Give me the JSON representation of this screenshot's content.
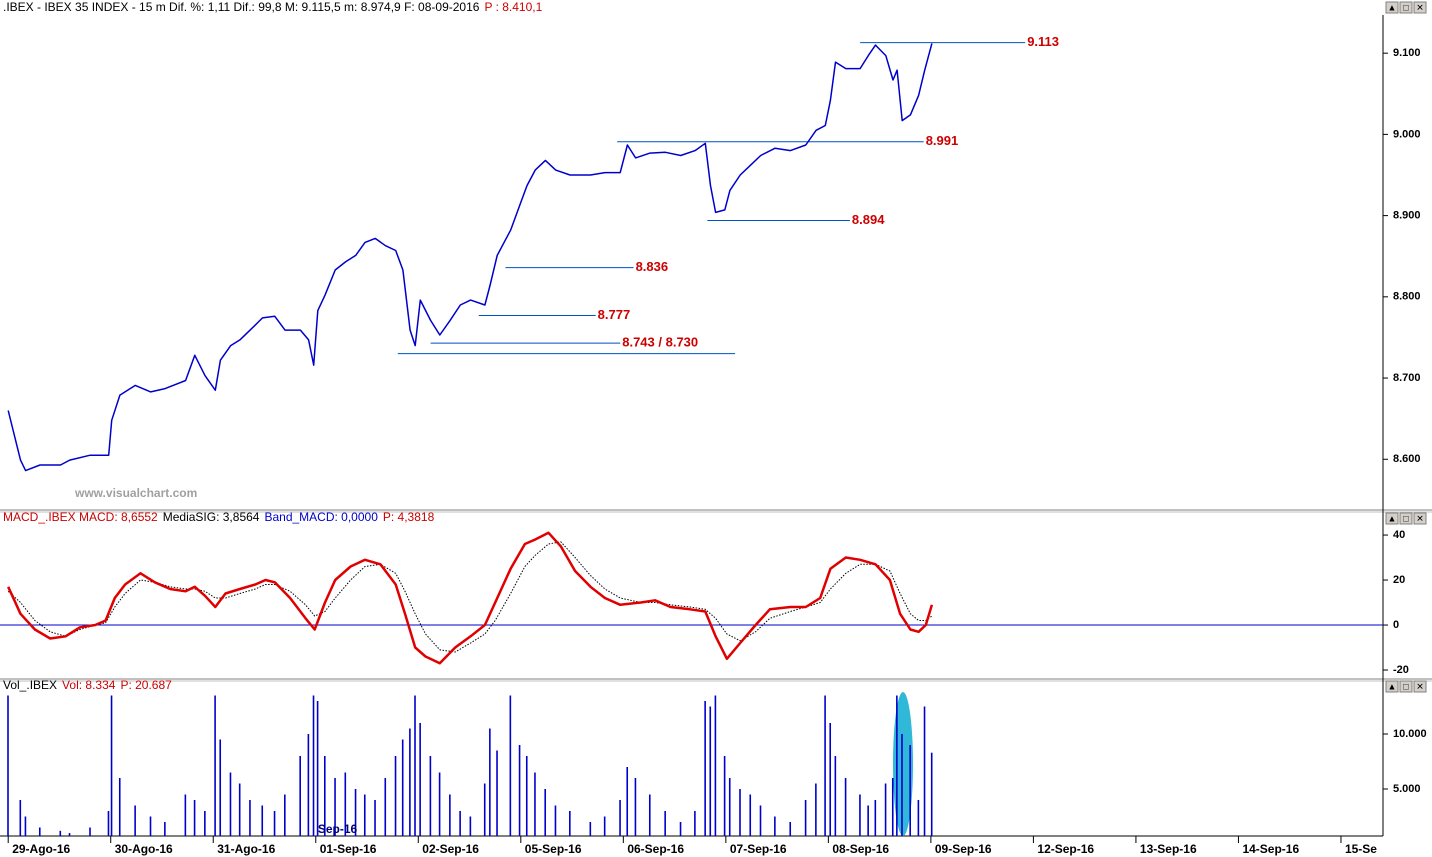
{
  "chart_data": [
    {
      "type": "line",
      "title_parts": [
        ".IBEX - IBEX 35 INDEX -  15 m  Dif. %: 1,11  Dif.: 99,8  M: 9.115,5  m: 8.974,9  F: 08-09-2016",
        "P : 8.410,1"
      ],
      "title_colors": [
        "#000000",
        "#cc0000"
      ],
      "watermark": "www.visualchart.com",
      "xlim": [
        -0.08,
        13.41
      ],
      "xticks": [
        {
          "value": 0,
          "label": "29-Ago-16"
        },
        {
          "value": 1,
          "label": "30-Ago-16"
        },
        {
          "value": 2,
          "label": "31-Ago-16"
        },
        {
          "value": 3,
          "label": "01-Sep-16"
        },
        {
          "value": 4,
          "label": "02-Sep-16"
        },
        {
          "value": 5,
          "label": "05-Sep-16"
        },
        {
          "value": 6,
          "label": "06-Sep-16"
        },
        {
          "value": 7,
          "label": "07-Sep-16"
        },
        {
          "value": 8,
          "label": "08-Sep-16"
        },
        {
          "value": 9,
          "label": "09-Sep-16"
        },
        {
          "value": 10,
          "label": "12-Sep-16"
        },
        {
          "value": 11,
          "label": "13-Sep-16"
        },
        {
          "value": 12,
          "label": "14-Sep-16"
        },
        {
          "value": 13,
          "label": "15-Se"
        }
      ],
      "ylim": [
        8540,
        9147
      ],
      "yticks": [
        {
          "value": 9100,
          "label": "9.100"
        },
        {
          "value": 9000,
          "label": "9.000"
        },
        {
          "value": 8900,
          "label": "8.900"
        },
        {
          "value": 8800,
          "label": "8.800"
        },
        {
          "value": 8700,
          "label": "8.700"
        },
        {
          "value": 8600,
          "label": "8.600"
        }
      ],
      "x": [
        0,
        0.12,
        0.17,
        0.31,
        0.51,
        0.6,
        0.8,
        0.98,
        1.01,
        1.09,
        1.24,
        1.39,
        1.53,
        1.73,
        1.82,
        1.92,
        2.02,
        2.07,
        2.17,
        2.26,
        2.36,
        2.48,
        2.6,
        2.7,
        2.85,
        2.93,
        2.98,
        3.02,
        3.09,
        3.19,
        3.29,
        3.39,
        3.48,
        3.58,
        3.68,
        3.78,
        3.85,
        3.92,
        3.97,
        4.02,
        4.12,
        4.21,
        4.31,
        4.41,
        4.51,
        4.65,
        4.7,
        4.77,
        4.9,
        4.99,
        5.06,
        5.14,
        5.24,
        5.34,
        5.48,
        5.68,
        5.82,
        5.97,
        6.04,
        6.12,
        6.26,
        6.41,
        6.56,
        6.7,
        6.8,
        6.85,
        6.9,
        6.99,
        7.04,
        7.14,
        7.24,
        7.34,
        7.48,
        7.63,
        7.78,
        7.88,
        7.97,
        8.02,
        8.07,
        8.17,
        8.31,
        8.39,
        8.46,
        8.56,
        8.63,
        8.67,
        8.72,
        8.8,
        8.88,
        8.94,
        9.01
      ],
      "series": [
        {
          "color": "#0000cc",
          "width": 1.5,
          "values": [
            8660,
            8599,
            8586,
            8593,
            8593,
            8599,
            8605,
            8605,
            8648,
            8679,
            8691,
            8683,
            8687,
            8697,
            8728,
            8703,
            8685,
            8722,
            8740,
            8747,
            8759,
            8774,
            8776,
            8759,
            8759,
            8747,
            8716,
            8783,
            8802,
            8833,
            8843,
            8851,
            8867,
            8872,
            8863,
            8857,
            8833,
            8759,
            8740,
            8796,
            8771,
            8753,
            8771,
            8790,
            8796,
            8790,
            8814,
            8851,
            8882,
            8913,
            8937,
            8956,
            8968,
            8956,
            8950,
            8950,
            8953,
            8953,
            8987,
            8971,
            8977,
            8978,
            8974,
            8980,
            8989,
            8937,
            8904,
            8907,
            8931,
            8950,
            8962,
            8974,
            8983,
            8980,
            8987,
            9005,
            9011,
            9042,
            9089,
            9081,
            9081,
            9097,
            9110,
            9097,
            9067,
            9079,
            9017,
            9024,
            9048,
            9079,
            9112
          ]
        }
      ],
      "level_color": "#0050c8",
      "levels": [
        {
          "value": 9113,
          "label": "9.113",
          "x": [
            8.31,
            9.92
          ]
        },
        {
          "value": 8991,
          "label": "8.991",
          "x": [
            5.94,
            8.93
          ]
        },
        {
          "value": 8894,
          "label": "8.894",
          "x": [
            6.82,
            8.21
          ]
        },
        {
          "value": 8836,
          "label": "8.836",
          "x": [
            4.85,
            6.1
          ]
        },
        {
          "value": 8777,
          "label": "8.777",
          "x": [
            4.59,
            5.73
          ]
        },
        {
          "value": 8743,
          "label": "8.743 / 8.730",
          "x": [
            4.12,
            5.97
          ]
        },
        {
          "value": 8730,
          "x": [
            3.8,
            7.09
          ]
        }
      ]
    },
    {
      "type": "line",
      "title_parts": [
        "MACD_.IBEX MACD: 8,6552",
        "MediaSIG: 3,8564",
        "Band_MACD: 0,0000",
        "P: 4,3818"
      ],
      "title_colors": [
        "#cc0000",
        "#000000",
        "#0000cc",
        "#cc0000"
      ],
      "ylim": [
        -23.1,
        45.8
      ],
      "yticks": [
        40,
        20,
        0,
        -20
      ],
      "band_value": 0,
      "band_color": "#0000cc",
      "x": [
        0,
        0.12,
        0.26,
        0.41,
        0.56,
        0.7,
        0.85,
        0.95,
        1.04,
        1.14,
        1.29,
        1.43,
        1.58,
        1.73,
        1.82,
        1.92,
        2.02,
        2.12,
        2.26,
        2.41,
        2.51,
        2.6,
        2.75,
        2.9,
        2.99,
        3.09,
        3.19,
        3.34,
        3.48,
        3.63,
        3.78,
        3.87,
        3.97,
        4.07,
        4.21,
        4.36,
        4.51,
        4.65,
        4.75,
        4.9,
        5.04,
        5.14,
        5.27,
        5.39,
        5.53,
        5.68,
        5.82,
        5.97,
        6.17,
        6.31,
        6.46,
        6.65,
        6.8,
        6.9,
        7.01,
        7.14,
        7.29,
        7.43,
        7.63,
        7.78,
        7.92,
        8.02,
        8.17,
        8.31,
        8.46,
        8.6,
        8.7,
        8.8,
        8.88,
        8.95,
        9.01
      ],
      "series": [
        {
          "color": "#000000",
          "width": 1,
          "style": "dotted",
          "values": [
            15,
            10,
            2,
            -3,
            -5,
            -2,
            0,
            1,
            8,
            14,
            20,
            19,
            17,
            16,
            16,
            15,
            12,
            12,
            14,
            16,
            18,
            18,
            15,
            9,
            4,
            6,
            12,
            20,
            26,
            27,
            23,
            15,
            5,
            -4,
            -11,
            -12,
            -8,
            -4,
            2,
            14,
            26,
            31,
            36,
            37,
            30,
            22,
            16,
            12,
            10,
            10,
            9,
            8,
            7,
            3,
            -4,
            -7,
            -3,
            3,
            6,
            8,
            10,
            16,
            23,
            27,
            27,
            24,
            14,
            5,
            2,
            2,
            4
          ]
        },
        {
          "color": "#e00000",
          "width": 2.5,
          "values": [
            17,
            5,
            -2,
            -6,
            -5,
            -1,
            0,
            2,
            12,
            18,
            23,
            19,
            16,
            15,
            17,
            13,
            8,
            14,
            16,
            18,
            20,
            19,
            12,
            3,
            -2,
            10,
            20,
            26,
            29,
            27,
            18,
            5,
            -10,
            -14,
            -17,
            -10,
            -5,
            0,
            10,
            25,
            36,
            38,
            41,
            35,
            24,
            17,
            12,
            9,
            10,
            11,
            8,
            7,
            6,
            -5,
            -15,
            -8,
            0,
            7,
            8,
            8,
            12,
            25,
            30,
            29,
            27,
            20,
            5,
            -2,
            -3,
            0,
            9
          ]
        }
      ]
    },
    {
      "type": "bar",
      "title_parts": [
        "Vol_.IBEX",
        "Vol: 8.334",
        "P: 20.687"
      ],
      "title_colors": [
        "#000000",
        "#cc0000",
        "#cc0000"
      ],
      "annotation": {
        "text": "Sep-16",
        "x": 3.02
      },
      "ylim": [
        727,
        14000
      ],
      "yticks": [
        {
          "value": 10000,
          "label": "10.000"
        },
        {
          "value": 5000,
          "label": "5.000"
        }
      ],
      "color": "#0000cc",
      "x": [
        0,
        0.12,
        0.17,
        0.31,
        0.51,
        0.6,
        0.8,
        0.98,
        1.01,
        1.09,
        1.24,
        1.39,
        1.53,
        1.73,
        1.82,
        1.92,
        2.02,
        2.07,
        2.17,
        2.26,
        2.36,
        2.48,
        2.6,
        2.7,
        2.85,
        2.93,
        2.98,
        3.02,
        3.09,
        3.19,
        3.29,
        3.39,
        3.48,
        3.58,
        3.68,
        3.78,
        3.85,
        3.92,
        3.97,
        4.02,
        4.12,
        4.21,
        4.31,
        4.41,
        4.51,
        4.65,
        4.7,
        4.77,
        4.9,
        4.99,
        5.06,
        5.14,
        5.24,
        5.34,
        5.48,
        5.68,
        5.82,
        5.97,
        6.04,
        6.12,
        6.26,
        6.41,
        6.56,
        6.7,
        6.8,
        6.85,
        6.9,
        6.99,
        7.04,
        7.14,
        7.24,
        7.34,
        7.48,
        7.63,
        7.78,
        7.88,
        7.97,
        8.02,
        8.07,
        8.17,
        8.31,
        8.39,
        8.46,
        8.56,
        8.63,
        8.67,
        8.72,
        8.8,
        8.88,
        8.94,
        9.01
      ],
      "values": [
        13500,
        4000,
        2500,
        1500,
        1200,
        1000,
        1500,
        3000,
        13500,
        6000,
        3500,
        2500,
        2000,
        4500,
        4000,
        3000,
        13500,
        9500,
        6500,
        5500,
        4000,
        3500,
        3000,
        4500,
        8000,
        10000,
        13500,
        13000,
        8000,
        6000,
        6500,
        5000,
        4500,
        4000,
        6000,
        8000,
        9500,
        10500,
        13500,
        11000,
        8000,
        6500,
        4500,
        3000,
        2500,
        5500,
        10500,
        8500,
        13500,
        9000,
        8000,
        6500,
        5000,
        3500,
        3000,
        2000,
        2500,
        4000,
        7000,
        6000,
        4500,
        3000,
        2000,
        3000,
        13000,
        12500,
        13500,
        8000,
        6000,
        5000,
        4500,
        3500,
        2500,
        2000,
        4000,
        5500,
        13500,
        11000,
        8000,
        6000,
        4500,
        3500,
        4000,
        5500,
        6000,
        13500,
        10000,
        9000,
        4000,
        12500,
        8300
      ]
    }
  ]
}
